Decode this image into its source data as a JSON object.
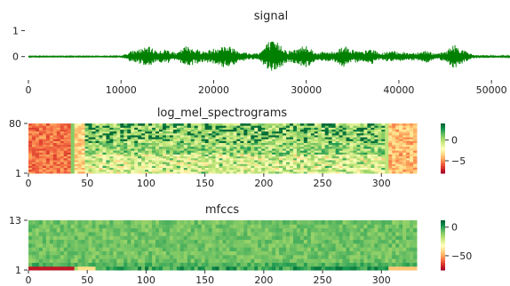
{
  "chart_data": [
    {
      "type": "line",
      "title": "signal",
      "xlabel": "",
      "ylabel": "",
      "xlim": [
        0,
        52000
      ],
      "ylim": [
        -0.9,
        1.05
      ],
      "x_ticks": [
        0,
        10000,
        20000,
        30000,
        40000,
        50000
      ],
      "x_tick_labels": [
        "0",
        "10000",
        "20000",
        "30000",
        "40000",
        "50000"
      ],
      "y_ticks": [
        0,
        1
      ],
      "y_tick_labels": [
        "0",
        "1"
      ],
      "grid": false,
      "series_color": "#008000",
      "envelope": {
        "x": [
          0,
          10000,
          11000,
          12000,
          13000,
          14000,
          15000,
          16000,
          17000,
          18000,
          19000,
          20000,
          21000,
          22000,
          23000,
          24000,
          25000,
          26000,
          27000,
          28000,
          29000,
          30000,
          31000,
          32000,
          33000,
          34000,
          35000,
          36000,
          37000,
          38000,
          39000,
          40000,
          41000,
          42000,
          43000,
          44000,
          45000,
          46000,
          47000,
          48000,
          49000,
          50000,
          52000
        ],
        "amplitude": [
          0.02,
          0.02,
          0.2,
          0.3,
          0.38,
          0.22,
          0.3,
          0.12,
          0.42,
          0.32,
          0.2,
          0.32,
          0.45,
          0.38,
          0.2,
          0.12,
          0.18,
          0.62,
          0.55,
          0.22,
          0.3,
          0.5,
          0.15,
          0.2,
          0.18,
          0.45,
          0.28,
          0.18,
          0.32,
          0.12,
          0.22,
          0.2,
          0.15,
          0.18,
          0.25,
          0.1,
          0.2,
          0.48,
          0.25,
          0.08,
          0.05,
          0.05,
          0.03
        ]
      }
    },
    {
      "type": "heatmap",
      "title": "log_mel_spectrograms",
      "xlim": [
        0,
        330
      ],
      "ylim": [
        1,
        80
      ],
      "x_ticks": [
        0,
        50,
        100,
        150,
        200,
        250,
        300
      ],
      "x_tick_labels": [
        "0",
        "50",
        "100",
        "150",
        "200",
        "250",
        "300"
      ],
      "y_ticks": [
        1,
        80
      ],
      "y_tick_labels": [
        "1",
        "80"
      ],
      "colormap": "RdYlGn",
      "colorbar": {
        "range": [
          -8,
          4
        ],
        "ticks": [
          0,
          -5
        ],
        "tick_labels": [
          "0",
          "−5"
        ]
      }
    },
    {
      "type": "heatmap",
      "title": "mfccs",
      "xlim": [
        0,
        330
      ],
      "ylim": [
        1,
        13
      ],
      "x_ticks": [
        0,
        50,
        100,
        150,
        200,
        250,
        300
      ],
      "x_tick_labels": [
        "0",
        "50",
        "100",
        "150",
        "200",
        "250",
        "300"
      ],
      "y_ticks": [
        1,
        13
      ],
      "y_tick_labels": [
        "1",
        "13"
      ],
      "colormap": "RdYlGn",
      "colorbar": {
        "range": [
          -75,
          12
        ],
        "ticks": [
          0,
          -50
        ],
        "tick_labels": [
          "0",
          "−50"
        ]
      }
    }
  ]
}
